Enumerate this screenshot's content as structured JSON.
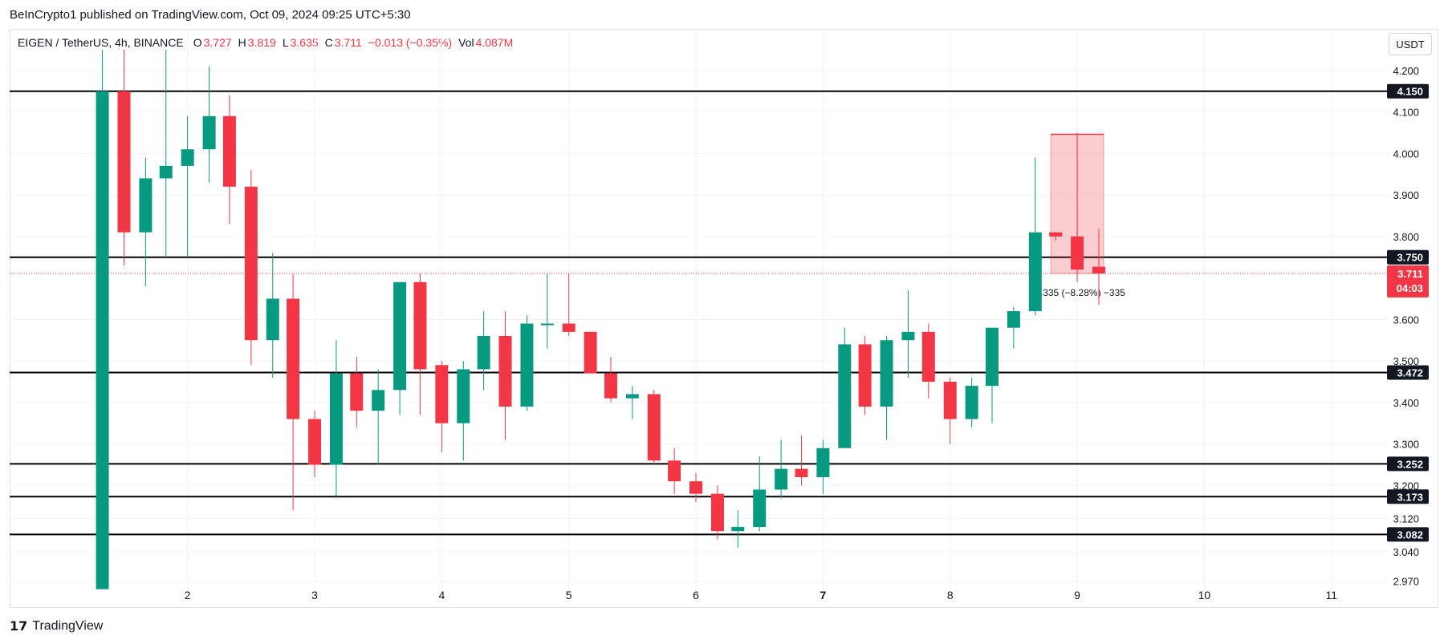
{
  "publisher_line": "BeInCrypto1 published on TradingView.com, Oct 09, 2024 09:25 UTC+5:30",
  "legend": {
    "symbol": "EIGEN / TetherUS, 4h, BINANCE",
    "o_label": "O",
    "o_value": "3.727",
    "h_label": "H",
    "h_value": "3.819",
    "l_label": "L",
    "l_value": "3.635",
    "c_label": "C",
    "c_value": "3.711",
    "change": "−0.013 (−0.35%)",
    "vol_label": "Vol",
    "vol_value": "4.087M"
  },
  "currency_button": "USDT",
  "brand": "TradingView",
  "colors": {
    "up": "#089981",
    "down": "#f23645",
    "current_price": "#f23645",
    "level_line": "#000000"
  },
  "chart_data": {
    "type": "candlestick",
    "title": "EIGEN / TetherUS, 4h, BINANCE",
    "x_ticks": [
      "2",
      "3",
      "4",
      "5",
      "6",
      "7",
      "8",
      "9",
      "10",
      "11"
    ],
    "x_tick_positions": [
      2,
      3,
      4,
      5,
      6,
      7,
      8,
      9,
      10,
      11
    ],
    "y_ticks": [
      "4.200",
      "4.100",
      "4.000",
      "3.900",
      "3.800",
      "3.600",
      "3.500",
      "3.400",
      "3.300",
      "3.200",
      "3.120",
      "3.040",
      "2.970"
    ],
    "ylim": [
      2.93,
      4.25
    ],
    "xlim": [
      0.6,
      11.45
    ],
    "horizontal_levels": [
      4.15,
      3.75,
      3.472,
      3.252,
      3.173,
      3.082
    ],
    "level_labels": [
      "4.150",
      "3.750",
      "3.472",
      "3.252",
      "3.173",
      "3.082"
    ],
    "current_price": 3.711,
    "current_price_label": "3.711",
    "countdown_label": "04:03",
    "measure": {
      "x_start": 8.83,
      "x_end": 9.17,
      "top": 4.046,
      "bottom": 3.711,
      "label": "−0.335 (−8.28%) −335"
    },
    "candles": [
      {
        "x": 1.33,
        "o": 2.95,
        "h": 4.25,
        "l": 2.95,
        "c": 4.15
      },
      {
        "x": 1.5,
        "o": 4.15,
        "h": 4.25,
        "l": 3.73,
        "c": 3.81
      },
      {
        "x": 1.67,
        "o": 3.81,
        "h": 3.99,
        "l": 3.68,
        "c": 3.94
      },
      {
        "x": 1.83,
        "o": 3.94,
        "h": 4.25,
        "l": 3.75,
        "c": 3.97
      },
      {
        "x": 2.0,
        "o": 3.97,
        "h": 4.09,
        "l": 3.75,
        "c": 4.01
      },
      {
        "x": 2.17,
        "o": 4.01,
        "h": 4.21,
        "l": 3.93,
        "c": 4.09
      },
      {
        "x": 2.33,
        "o": 4.09,
        "h": 4.14,
        "l": 3.83,
        "c": 3.92
      },
      {
        "x": 2.5,
        "o": 3.92,
        "h": 3.96,
        "l": 3.49,
        "c": 3.55
      },
      {
        "x": 2.67,
        "o": 3.55,
        "h": 3.76,
        "l": 3.46,
        "c": 3.65
      },
      {
        "x": 2.83,
        "o": 3.65,
        "h": 3.71,
        "l": 3.14,
        "c": 3.36
      },
      {
        "x": 3.0,
        "o": 3.36,
        "h": 3.38,
        "l": 3.22,
        "c": 3.25
      },
      {
        "x": 3.17,
        "o": 3.25,
        "h": 3.55,
        "l": 3.17,
        "c": 3.47
      },
      {
        "x": 3.33,
        "o": 3.47,
        "h": 3.51,
        "l": 3.34,
        "c": 3.38
      },
      {
        "x": 3.5,
        "o": 3.38,
        "h": 3.48,
        "l": 3.25,
        "c": 3.43
      },
      {
        "x": 3.67,
        "o": 3.43,
        "h": 3.69,
        "l": 3.37,
        "c": 3.69
      },
      {
        "x": 3.83,
        "o": 3.69,
        "h": 3.71,
        "l": 3.37,
        "c": 3.48
      },
      {
        "x": 4.0,
        "o": 3.49,
        "h": 3.5,
        "l": 3.28,
        "c": 3.35
      },
      {
        "x": 4.17,
        "o": 3.35,
        "h": 3.5,
        "l": 3.26,
        "c": 3.48
      },
      {
        "x": 4.33,
        "o": 3.48,
        "h": 3.62,
        "l": 3.43,
        "c": 3.56
      },
      {
        "x": 4.5,
        "o": 3.56,
        "h": 3.62,
        "l": 3.31,
        "c": 3.39
      },
      {
        "x": 4.67,
        "o": 3.39,
        "h": 3.61,
        "l": 3.38,
        "c": 3.59
      },
      {
        "x": 4.83,
        "o": 3.59,
        "h": 3.71,
        "l": 3.53,
        "c": 3.59
      },
      {
        "x": 5.0,
        "o": 3.59,
        "h": 3.71,
        "l": 3.56,
        "c": 3.57
      },
      {
        "x": 5.17,
        "o": 3.57,
        "h": 3.57,
        "l": 3.47,
        "c": 3.47
      },
      {
        "x": 5.33,
        "o": 3.47,
        "h": 3.51,
        "l": 3.4,
        "c": 3.41
      },
      {
        "x": 5.5,
        "o": 3.41,
        "h": 3.44,
        "l": 3.36,
        "c": 3.42
      },
      {
        "x": 5.67,
        "o": 3.42,
        "h": 3.43,
        "l": 3.25,
        "c": 3.26
      },
      {
        "x": 5.83,
        "o": 3.26,
        "h": 3.29,
        "l": 3.18,
        "c": 3.21
      },
      {
        "x": 6.0,
        "o": 3.21,
        "h": 3.23,
        "l": 3.16,
        "c": 3.18
      },
      {
        "x": 6.17,
        "o": 3.18,
        "h": 3.2,
        "l": 3.07,
        "c": 3.09
      },
      {
        "x": 6.33,
        "o": 3.09,
        "h": 3.14,
        "l": 3.05,
        "c": 3.1
      },
      {
        "x": 6.5,
        "o": 3.1,
        "h": 3.27,
        "l": 3.09,
        "c": 3.19
      },
      {
        "x": 6.67,
        "o": 3.19,
        "h": 3.31,
        "l": 3.17,
        "c": 3.24
      },
      {
        "x": 6.83,
        "o": 3.24,
        "h": 3.32,
        "l": 3.2,
        "c": 3.22
      },
      {
        "x": 7.0,
        "o": 3.22,
        "h": 3.31,
        "l": 3.18,
        "c": 3.29
      },
      {
        "x": 7.17,
        "o": 3.29,
        "h": 3.58,
        "l": 3.29,
        "c": 3.54
      },
      {
        "x": 7.33,
        "o": 3.54,
        "h": 3.56,
        "l": 3.37,
        "c": 3.39
      },
      {
        "x": 7.5,
        "o": 3.39,
        "h": 3.56,
        "l": 3.31,
        "c": 3.55
      },
      {
        "x": 7.67,
        "o": 3.55,
        "h": 3.67,
        "l": 3.46,
        "c": 3.57
      },
      {
        "x": 7.83,
        "o": 3.57,
        "h": 3.59,
        "l": 3.41,
        "c": 3.45
      },
      {
        "x": 8.0,
        "o": 3.45,
        "h": 3.46,
        "l": 3.3,
        "c": 3.36
      },
      {
        "x": 8.17,
        "o": 3.36,
        "h": 3.46,
        "l": 3.34,
        "c": 3.44
      },
      {
        "x": 8.33,
        "o": 3.44,
        "h": 3.58,
        "l": 3.35,
        "c": 3.58
      },
      {
        "x": 8.5,
        "o": 3.58,
        "h": 3.63,
        "l": 3.53,
        "c": 3.62
      },
      {
        "x": 8.67,
        "o": 3.62,
        "h": 3.99,
        "l": 3.61,
        "c": 3.81
      },
      {
        "x": 8.83,
        "o": 3.81,
        "h": 3.81,
        "l": 3.79,
        "c": 3.8
      },
      {
        "x": 9.0,
        "o": 3.8,
        "h": 4.05,
        "l": 3.69,
        "c": 3.72
      },
      {
        "x": 9.17,
        "o": 3.727,
        "h": 3.819,
        "l": 3.635,
        "c": 3.711
      }
    ]
  }
}
